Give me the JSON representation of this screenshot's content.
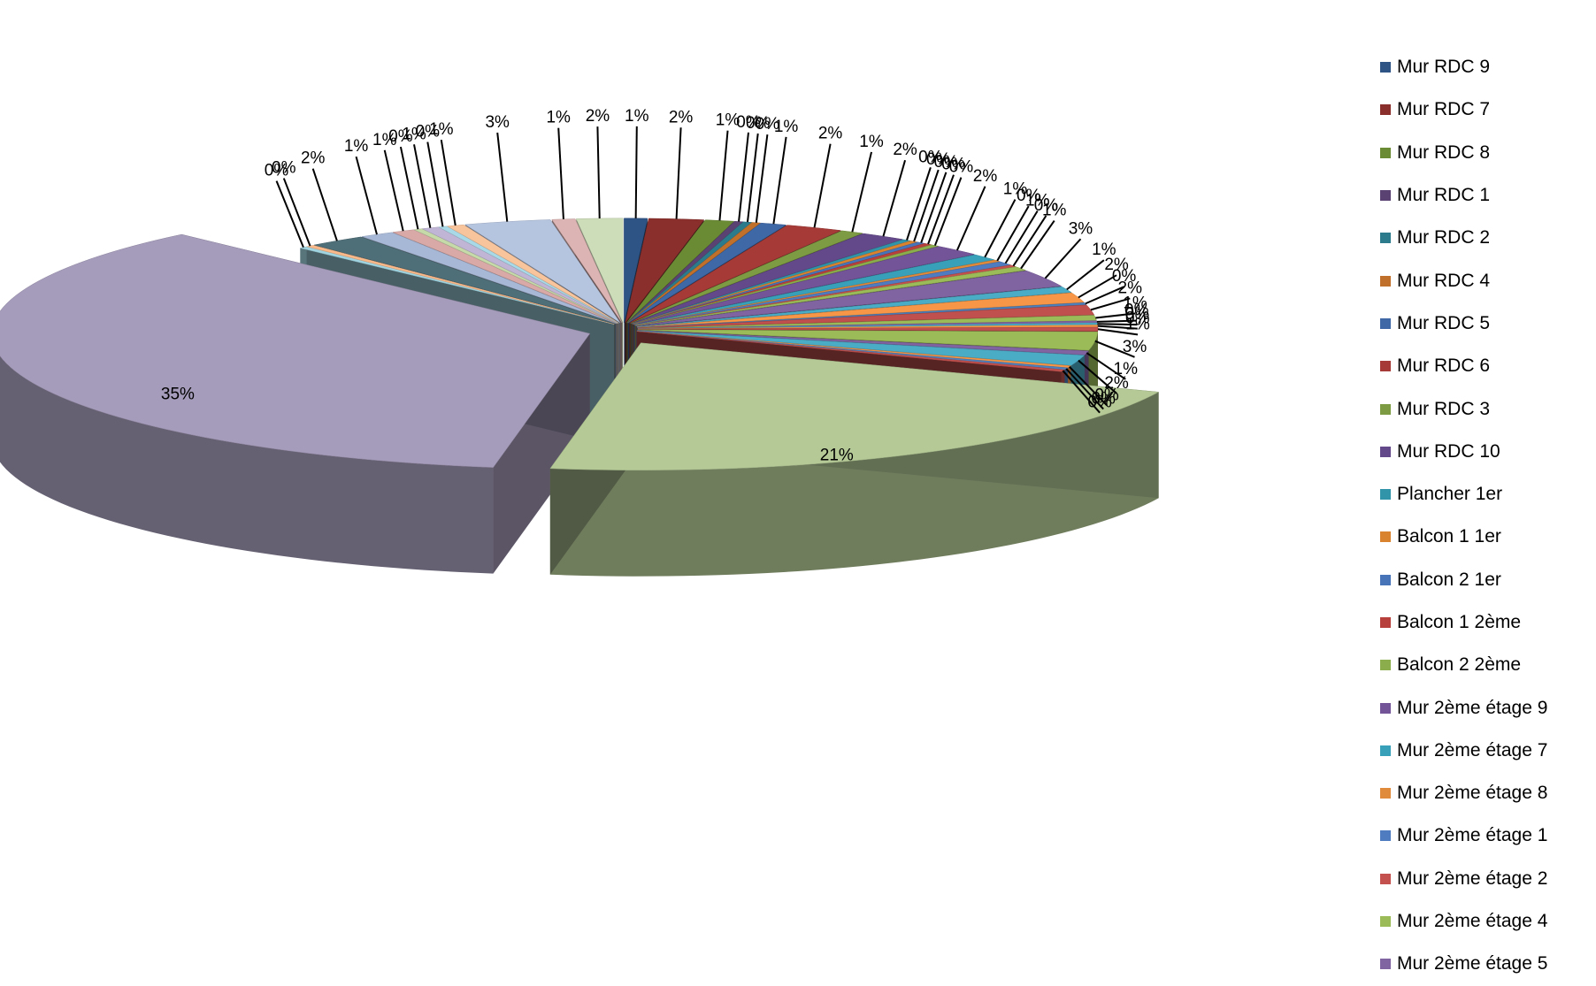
{
  "chart_data": {
    "type": "pie",
    "style": "3d-exploded",
    "labels_shown_as": "percent",
    "legend_position": "right",
    "slices": [
      {
        "label": "Mur RDC 9",
        "pct": "1%",
        "value": 0.8,
        "color": "#2e5486"
      },
      {
        "label": "Mur RDC 7",
        "pct": "2%",
        "value": 1.9,
        "color": "#8b2f2c"
      },
      {
        "label": "Mur RDC 8",
        "pct": "1%",
        "value": 1.0,
        "color": "#6a8a34"
      },
      {
        "label": "Mur RDC 1",
        "pct": "0%",
        "value": 0.3,
        "color": "#5a4272"
      },
      {
        "label": "Mur RDC 2",
        "pct": "0%",
        "value": 0.3,
        "color": "#2b7b8c"
      },
      {
        "label": "Mur RDC 4",
        "pct": "0%",
        "value": 0.3,
        "color": "#c0702a"
      },
      {
        "label": "Mur RDC 5",
        "pct": "1%",
        "value": 0.9,
        "color": "#3f68a6"
      },
      {
        "label": "Mur RDC 6",
        "pct": "2%",
        "value": 2.0,
        "color": "#a53a37"
      },
      {
        "label": "Mur RDC 3",
        "pct": "1%",
        "value": 0.8,
        "color": "#7d9b42"
      },
      {
        "label": "Mur RDC 10",
        "pct": "2%",
        "value": 1.6,
        "color": "#64498a"
      },
      {
        "label": "Plancher 1er",
        "pct": "0%",
        "value": 0.3,
        "color": "#3194a9"
      },
      {
        "label": "Balcon 1 1er",
        "pct": "0%",
        "value": 0.3,
        "color": "#d9832f"
      },
      {
        "label": "Balcon 2 1er",
        "pct": "0%",
        "value": 0.3,
        "color": "#4774b8"
      },
      {
        "label": "Balcon 1 2ème",
        "pct": "0%",
        "value": 0.3,
        "color": "#b8403c"
      },
      {
        "label": "Balcon 2 2ème",
        "pct": "0%",
        "value": 0.3,
        "color": "#8cad4c"
      },
      {
        "label": "Mur 2ème étage 9",
        "pct": "2%",
        "value": 1.7,
        "color": "#735499"
      },
      {
        "label": "Mur 2ème étage 7",
        "pct": "1%",
        "value": 1.0,
        "color": "#38a1b9"
      },
      {
        "label": "Mur 2ème étage 8",
        "pct": "0%",
        "value": 0.3,
        "color": "#e08a3c"
      },
      {
        "label": "Mur 2ème étage 1",
        "pct": "1%",
        "value": 0.6,
        "color": "#4f7cc0"
      },
      {
        "label": "Mur 2ème étage 2",
        "pct": "0%",
        "value": 0.3,
        "color": "#c4514d"
      },
      {
        "label": "Mur 2ème étage 4",
        "pct": "1%",
        "value": 0.6,
        "color": "#9bbb59"
      },
      {
        "label": "Mur 2ème étage 5",
        "pct": "3%",
        "value": 2.6,
        "color": "#8064a2"
      },
      {
        "label": "",
        "pct": "1%",
        "value": 0.9,
        "color": "#4bacc6"
      },
      {
        "label": "",
        "pct": "2%",
        "value": 1.5,
        "color": "#f79646"
      },
      {
        "label": "",
        "pct": "0%",
        "value": 0.3,
        "color": "#4f81bd"
      },
      {
        "label": "",
        "pct": "2%",
        "value": 1.5,
        "color": "#c0504d"
      },
      {
        "label": "",
        "pct": "1%",
        "value": 0.8,
        "color": "#9bbb59"
      },
      {
        "label": "",
        "pct": "0%",
        "value": 0.3,
        "color": "#8064a2"
      },
      {
        "label": "",
        "pct": "0%",
        "value": 0.3,
        "color": "#4bacc6"
      },
      {
        "label": "",
        "pct": "0%",
        "value": 0.3,
        "color": "#f79646"
      },
      {
        "label": "",
        "pct": "1%",
        "value": 0.6,
        "color": "#c0504d"
      },
      {
        "label": "",
        "pct": "3%",
        "value": 2.8,
        "color": "#9bbb59"
      },
      {
        "label": "",
        "pct": "1%",
        "value": 0.6,
        "color": "#8064a2"
      },
      {
        "label": "",
        "pct": "2%",
        "value": 1.6,
        "color": "#4bacc6"
      },
      {
        "label": "",
        "pct": "0%",
        "value": 0.3,
        "color": "#f79646"
      },
      {
        "label": "",
        "pct": "0%",
        "value": 0.3,
        "color": "#4f81bd"
      },
      {
        "label": "",
        "pct": "0%",
        "value": 0.3,
        "color": "#c0504d"
      },
      {
        "label": "",
        "pct": "21%",
        "value": 21.0,
        "color": "#b4c996"
      },
      {
        "label": "",
        "pct": "35%",
        "value": 35.0,
        "color": "#a59bba"
      },
      {
        "label": "",
        "pct": "0%",
        "value": 0.3,
        "color": "#9fd4e0"
      },
      {
        "label": "",
        "pct": "0%",
        "value": 0.3,
        "color": "#f9b98a"
      },
      {
        "label": "",
        "pct": "2%",
        "value": 2.0,
        "color": "#4f6f78"
      },
      {
        "label": "",
        "pct": "1%",
        "value": 1.2,
        "color": "#a7b8d6"
      },
      {
        "label": "",
        "pct": "1%",
        "value": 0.8,
        "color": "#d9a9a7"
      },
      {
        "label": "",
        "pct": "0%",
        "value": 0.3,
        "color": "#c6d9a8"
      },
      {
        "label": "",
        "pct": "1%",
        "value": 0.6,
        "color": "#c0b5d5"
      },
      {
        "label": "",
        "pct": "0%",
        "value": 0.3,
        "color": "#a9d9e6"
      },
      {
        "label": "",
        "pct": "1%",
        "value": 0.6,
        "color": "#f8c49c"
      },
      {
        "label": "",
        "pct": "3%",
        "value": 3.0,
        "color": "#b6c5df"
      },
      {
        "label": "",
        "pct": "1%",
        "value": 0.8,
        "color": "#dbb4b3"
      },
      {
        "label": "",
        "pct": "2%",
        "value": 1.6,
        "color": "#cddcb9"
      }
    ]
  }
}
